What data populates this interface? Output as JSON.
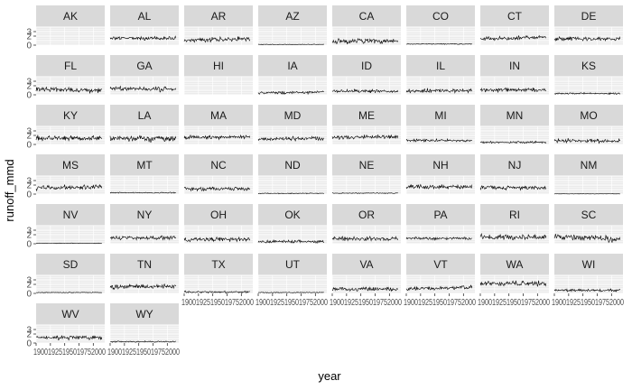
{
  "chart_data": {
    "type": "line",
    "facet_by": "state",
    "xlabel": "year",
    "ylabel": "runoff_mmd",
    "xlim": [
      1900,
      2020
    ],
    "ylim": [
      0,
      4
    ],
    "y_ticks": [
      0,
      2,
      3
    ],
    "x_tick_labels_text": [
      "1900",
      "1925",
      "1950",
      "1975",
      "2000"
    ],
    "grid": true,
    "panel_background": "#ebebeb",
    "strip_background": "#d9d9d9",
    "line_color": "#000000",
    "panels": [
      {
        "state": "AK",
        "approx_mean": null,
        "approx_sd": 0,
        "trend": 0,
        "start": 1900,
        "end": 1900
      },
      {
        "state": "AL",
        "approx_mean": 1.5,
        "approx_sd": 0.3,
        "trend": 0,
        "start": 1900,
        "end": 2015
      },
      {
        "state": "AR",
        "approx_mean": 1.2,
        "approx_sd": 0.4,
        "trend": 0.3,
        "start": 1900,
        "end": 2015
      },
      {
        "state": "AZ",
        "approx_mean": 0.15,
        "approx_sd": 0.05,
        "trend": 0,
        "start": 1900,
        "end": 2015
      },
      {
        "state": "CA",
        "approx_mean": 0.9,
        "approx_sd": 0.4,
        "trend": 0,
        "start": 1900,
        "end": 2015
      },
      {
        "state": "CO",
        "approx_mean": 0.25,
        "approx_sd": 0.07,
        "trend": 0,
        "start": 1900,
        "end": 2015
      },
      {
        "state": "CT",
        "approx_mean": 1.6,
        "approx_sd": 0.3,
        "trend": 0.4,
        "start": 1900,
        "end": 2015
      },
      {
        "state": "DE",
        "approx_mean": 1.4,
        "approx_sd": 0.3,
        "trend": 0,
        "start": 1900,
        "end": 2015
      },
      {
        "state": "FL",
        "approx_mean": 1.1,
        "approx_sd": 0.4,
        "trend": -0.2,
        "start": 1900,
        "end": 2015
      },
      {
        "state": "GA",
        "approx_mean": 1.3,
        "approx_sd": 0.35,
        "trend": -0.2,
        "start": 1900,
        "end": 2015
      },
      {
        "state": "HI",
        "approx_mean": null,
        "approx_sd": 0,
        "trend": 0,
        "start": 1900,
        "end": 1900
      },
      {
        "state": "IA",
        "approx_mean": 0.5,
        "approx_sd": 0.2,
        "trend": 0.2,
        "start": 1900,
        "end": 2015
      },
      {
        "state": "ID",
        "approx_mean": 0.8,
        "approx_sd": 0.25,
        "trend": 0,
        "start": 1900,
        "end": 2015
      },
      {
        "state": "IL",
        "approx_mean": 0.9,
        "approx_sd": 0.3,
        "trend": 0,
        "start": 1900,
        "end": 2015
      },
      {
        "state": "IN",
        "approx_mean": 1.1,
        "approx_sd": 0.3,
        "trend": 0,
        "start": 1900,
        "end": 2015
      },
      {
        "state": "KS",
        "approx_mean": 0.3,
        "approx_sd": 0.12,
        "trend": 0,
        "start": 1900,
        "end": 2015
      },
      {
        "state": "KY",
        "approx_mean": 1.4,
        "approx_sd": 0.35,
        "trend": 0,
        "start": 1900,
        "end": 2015
      },
      {
        "state": "LA",
        "approx_mean": 1.3,
        "approx_sd": 0.45,
        "trend": 0,
        "start": 1900,
        "end": 2015
      },
      {
        "state": "MA",
        "approx_mean": 1.6,
        "approx_sd": 0.3,
        "trend": 0.2,
        "start": 1900,
        "end": 2015
      },
      {
        "state": "MD",
        "approx_mean": 1.3,
        "approx_sd": 0.3,
        "trend": 0,
        "start": 1900,
        "end": 2015
      },
      {
        "state": "ME",
        "approx_mean": 1.6,
        "approx_sd": 0.3,
        "trend": 0.2,
        "start": 1900,
        "end": 2015
      },
      {
        "state": "MI",
        "approx_mean": 0.9,
        "approx_sd": 0.2,
        "trend": 0,
        "start": 1900,
        "end": 2015
      },
      {
        "state": "MN",
        "approx_mean": 0.5,
        "approx_sd": 0.15,
        "trend": 0,
        "start": 1900,
        "end": 2015
      },
      {
        "state": "MO",
        "approx_mean": 0.8,
        "approx_sd": 0.3,
        "trend": 0,
        "start": 1900,
        "end": 2015
      },
      {
        "state": "MS",
        "approx_mean": 1.5,
        "approx_sd": 0.4,
        "trend": 0.2,
        "start": 1900,
        "end": 2015
      },
      {
        "state": "MT",
        "approx_mean": 0.3,
        "approx_sd": 0.08,
        "trend": 0,
        "start": 1900,
        "end": 2015
      },
      {
        "state": "NC",
        "approx_mean": 1.2,
        "approx_sd": 0.3,
        "trend": 0,
        "start": 1900,
        "end": 2015
      },
      {
        "state": "ND",
        "approx_mean": 0.15,
        "approx_sd": 0.07,
        "trend": 0,
        "start": 1900,
        "end": 2015
      },
      {
        "state": "NE",
        "approx_mean": 0.2,
        "approx_sd": 0.07,
        "trend": 0,
        "start": 1900,
        "end": 2015
      },
      {
        "state": "NH",
        "approx_mean": 1.6,
        "approx_sd": 0.3,
        "trend": 0,
        "start": 1900,
        "end": 2015
      },
      {
        "state": "NJ",
        "approx_mean": 1.4,
        "approx_sd": 0.3,
        "trend": 0,
        "start": 1900,
        "end": 2015
      },
      {
        "state": "NM",
        "approx_mean": 0.05,
        "approx_sd": 0.02,
        "trend": 0,
        "start": 1900,
        "end": 2015
      },
      {
        "state": "NV",
        "approx_mean": 0.1,
        "approx_sd": 0.05,
        "trend": 0,
        "start": 1900,
        "end": 2015
      },
      {
        "state": "NY",
        "approx_mean": 1.3,
        "approx_sd": 0.3,
        "trend": 0,
        "start": 1900,
        "end": 2015
      },
      {
        "state": "OH",
        "approx_mean": 1.0,
        "approx_sd": 0.3,
        "trend": 0,
        "start": 1900,
        "end": 2015
      },
      {
        "state": "OK",
        "approx_mean": 0.5,
        "approx_sd": 0.25,
        "trend": 0,
        "start": 1900,
        "end": 2015
      },
      {
        "state": "OR",
        "approx_mean": 1.1,
        "approx_sd": 0.3,
        "trend": 0,
        "start": 1900,
        "end": 2015
      },
      {
        "state": "PA",
        "approx_mean": 1.2,
        "approx_sd": 0.25,
        "trend": 0,
        "start": 1900,
        "end": 2015
      },
      {
        "state": "RI",
        "approx_mean": 1.5,
        "approx_sd": 0.4,
        "trend": 0,
        "start": 1900,
        "end": 2015
      },
      {
        "state": "SC",
        "approx_mean": 1.3,
        "approx_sd": 0.5,
        "trend": -0.5,
        "start": 1900,
        "end": 2015
      },
      {
        "state": "SD",
        "approx_mean": 0.2,
        "approx_sd": 0.07,
        "trend": 0,
        "start": 1900,
        "end": 2015
      },
      {
        "state": "TN",
        "approx_mean": 1.5,
        "approx_sd": 0.35,
        "trend": 0,
        "start": 1900,
        "end": 2015
      },
      {
        "state": "TX",
        "approx_mean": 0.3,
        "approx_sd": 0.15,
        "trend": 0,
        "start": 1900,
        "end": 2015
      },
      {
        "state": "UT",
        "approx_mean": 0.2,
        "approx_sd": 0.07,
        "trend": 0,
        "start": 1900,
        "end": 2015
      },
      {
        "state": "VA",
        "approx_mean": 1.0,
        "approx_sd": 0.3,
        "trend": 0,
        "start": 1900,
        "end": 2015
      },
      {
        "state": "VT",
        "approx_mean": 1.2,
        "approx_sd": 0.3,
        "trend": 0.3,
        "start": 1900,
        "end": 2015
      },
      {
        "state": "WA",
        "approx_mean": 2.2,
        "approx_sd": 0.4,
        "trend": 0,
        "start": 1900,
        "end": 2015
      },
      {
        "state": "WI",
        "approx_mean": 0.7,
        "approx_sd": 0.2,
        "trend": 0,
        "start": 1900,
        "end": 2015
      },
      {
        "state": "WV",
        "approx_mean": 1.2,
        "approx_sd": 0.3,
        "trend": 0,
        "start": 1900,
        "end": 2015
      },
      {
        "state": "WY",
        "approx_mean": 0.3,
        "approx_sd": 0.1,
        "trend": 0,
        "start": 1900,
        "end": 2015
      }
    ]
  }
}
